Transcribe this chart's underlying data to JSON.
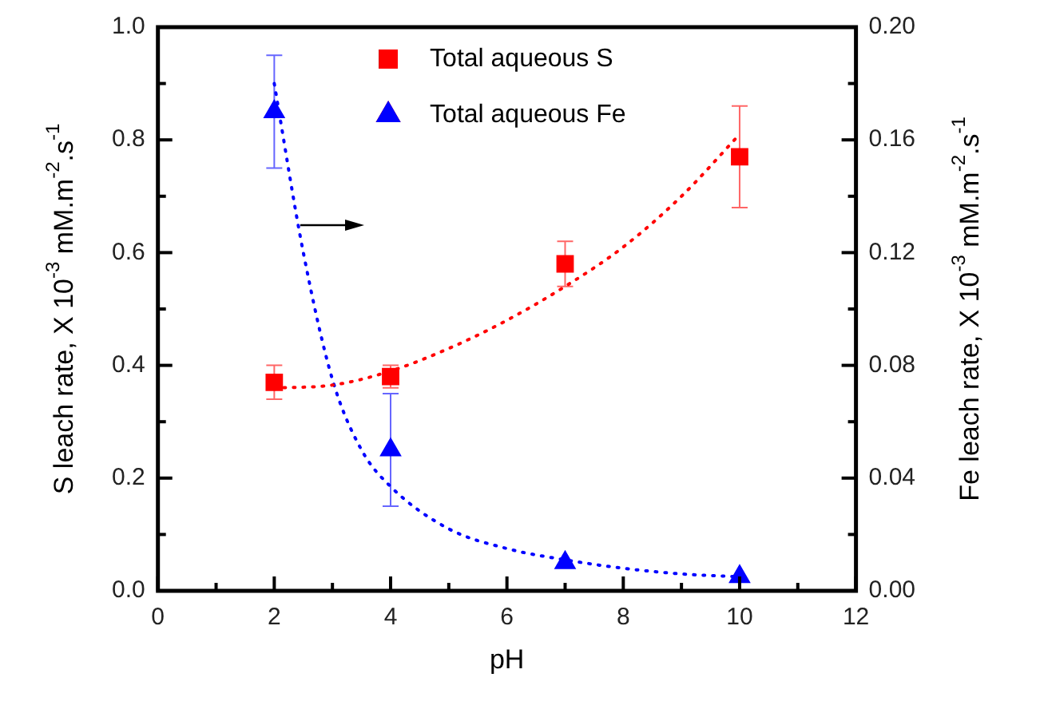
{
  "chart_data": {
    "type": "scatter",
    "xlabel": "pH",
    "ylabel": "S leach rate, X 10$^{-3}$ mM.m$^{-2}$.s$^{-1}$",
    "y2label": "Fe leach rate, X 10$^{-3}$ mM.m$^{-2}$.s$^{-1}$",
    "xlim": [
      0,
      12
    ],
    "xticks": [
      0,
      {
        "value": 1,
        "label": null
      },
      2,
      {
        "value": 3,
        "label": null
      },
      4,
      {
        "value": 5,
        "label": null
      },
      6,
      {
        "value": 7,
        "label": null
      },
      8,
      {
        "value": 9,
        "label": null
      },
      10,
      {
        "value": 11,
        "label": null
      },
      12
    ],
    "ylim": [
      0,
      1.0
    ],
    "yticks": [
      {
        "value": 0,
        "label": "0.0"
      },
      {
        "value": 0.1,
        "label": null
      },
      0.2,
      {
        "value": 0.3,
        "label": null
      },
      0.4,
      {
        "value": 0.5,
        "label": null
      },
      0.6,
      {
        "value": 0.7,
        "label": null
      },
      0.8,
      {
        "value": 0.9,
        "label": null
      },
      {
        "value": 1,
        "label": "1.0"
      }
    ],
    "y2lim": [
      0,
      0.2
    ],
    "y2ticks": [
      {
        "value": 0,
        "label": "0.00"
      },
      {
        "value": 0.02,
        "label": null
      },
      0.04,
      {
        "value": 0.06,
        "label": null
      },
      0.08,
      {
        "value": 0.1,
        "label": null
      },
      0.12,
      {
        "value": 0.14,
        "label": null
      },
      0.16,
      {
        "value": 0.18,
        "label": null
      },
      {
        "value": 0.2,
        "label": "0.20"
      }
    ],
    "legend": "top",
    "series": [
      {
        "name": "Total aqueous S",
        "marker": "square",
        "color": "#ff0000",
        "x": [
          2,
          4,
          7,
          10
        ],
        "values": [
          0.37,
          0.38,
          0.58,
          0.77
        ],
        "errors": [
          [
            0.34,
            0.4
          ],
          [
            0.36,
            0.4
          ],
          [
            0.54,
            0.62
          ],
          [
            0.68,
            0.86
          ]
        ]
      },
      {
        "name": "Total aqueous Fe",
        "marker": "triangle",
        "color": "#0000ff",
        "axis": "y2",
        "x": [
          2,
          4,
          7,
          10
        ],
        "values": [
          0.17,
          0.05,
          0.01,
          0.005
        ],
        "errors": [
          [
            0.15,
            0.19
          ],
          [
            0.03,
            0.07
          ],
          null,
          null
        ]
      },
      {
        "type": "line",
        "line_style": "dotted",
        "marker": "none",
        "color": "#ff0000",
        "x": [
          2,
          3,
          4,
          5,
          6,
          7,
          8,
          9,
          10
        ],
        "values": [
          0.36,
          0.365,
          0.39,
          0.43,
          0.48,
          0.54,
          0.61,
          0.7,
          0.81
        ]
      },
      {
        "type": "line",
        "line_style": "dotted",
        "marker": "none",
        "color": "#0000ff",
        "axis": "y2",
        "x": [
          2,
          2.5,
          3,
          3.5,
          4,
          5,
          6,
          7,
          8,
          9,
          10
        ],
        "values": [
          0.18,
          0.12,
          0.075,
          0.05,
          0.037,
          0.022,
          0.015,
          0.011,
          0.008,
          0.006,
          0.005
        ]
      }
    ]
  }
}
